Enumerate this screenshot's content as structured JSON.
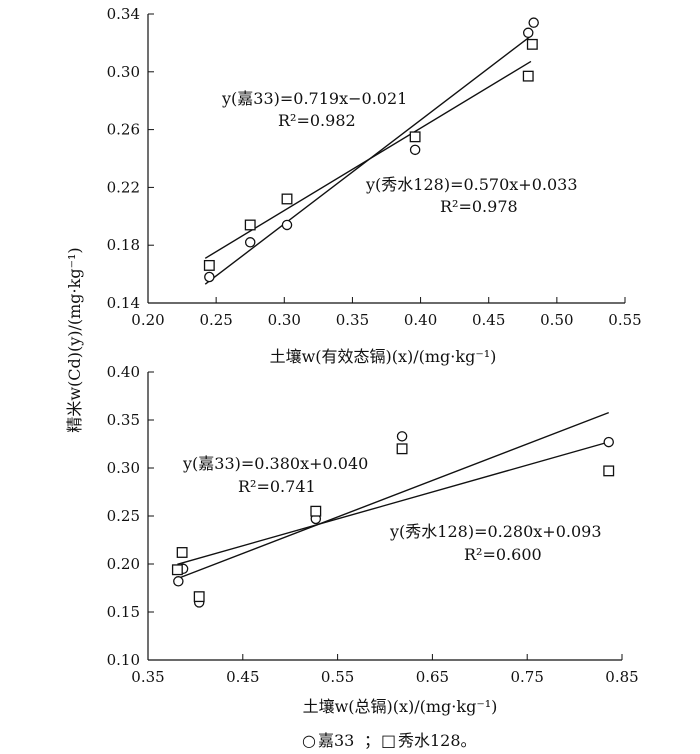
{
  "y_axis_shared_label": "精米w(Cd)(y)/(mg·kg⁻¹)",
  "legend": {
    "jia33_symbol": "○",
    "jia33_label": "嘉33",
    "separator": "；",
    "xiushui_symbol": "□",
    "xiushui_label": "秀水128。"
  },
  "chart_data": [
    {
      "type": "scatter",
      "xlabel": "土壤w(有效态镉)(x)/(mg·kg⁻¹)",
      "xlim": [
        0.2,
        0.55
      ],
      "ylim": [
        0.14,
        0.34
      ],
      "x_ticks": [
        "0.20",
        "0.25",
        "0.30",
        "0.35",
        "0.40",
        "0.45",
        "0.50",
        "0.55"
      ],
      "y_ticks": [
        "0.14",
        "0.18",
        "0.22",
        "0.26",
        "0.30",
        "0.34"
      ],
      "series": [
        {
          "name": "嘉33",
          "marker": "circle",
          "x": [
            0.245,
            0.275,
            0.302,
            0.396,
            0.479,
            0.483
          ],
          "y": [
            0.158,
            0.182,
            0.194,
            0.246,
            0.327,
            0.334
          ],
          "fit": {
            "slope": 0.719,
            "intercept": -0.021,
            "x_range": [
              0.242,
              0.481
            ]
          },
          "equation": "y(嘉33)=0.719x−0.021",
          "r2": "R²=0.982"
        },
        {
          "name": "秀水128",
          "marker": "square",
          "x": [
            0.245,
            0.275,
            0.302,
            0.396,
            0.479,
            0.482
          ],
          "y": [
            0.166,
            0.194,
            0.212,
            0.255,
            0.297,
            0.319
          ],
          "fit": {
            "slope": 0.57,
            "intercept": 0.033,
            "x_range": [
              0.242,
              0.481
            ]
          },
          "equation": "y(秀水128)=0.570x+0.033",
          "r2": "R²=0.978"
        }
      ]
    },
    {
      "type": "scatter",
      "xlabel": "土壤w(总镉)(x)/(mg·kg⁻¹)",
      "xlim": [
        0.35,
        0.85
      ],
      "ylim": [
        0.1,
        0.4
      ],
      "x_ticks": [
        "0.35",
        "0.45",
        "0.55",
        "0.65",
        "0.75",
        "0.85"
      ],
      "y_ticks": [
        "0.10",
        "0.15",
        "0.20",
        "0.25",
        "0.30",
        "0.35",
        "0.40"
      ],
      "series": [
        {
          "name": "嘉33",
          "marker": "circle",
          "x": [
            0.382,
            0.387,
            0.404,
            0.527,
            0.618,
            0.836
          ],
          "y": [
            0.182,
            0.195,
            0.16,
            0.247,
            0.333,
            0.327
          ],
          "fit": {
            "slope": 0.38,
            "intercept": 0.04,
            "x_range": [
              0.381,
              0.836
            ]
          },
          "equation": "y(嘉33)=0.380x+0.040",
          "r2": "R²=0.741"
        },
        {
          "name": "秀水128",
          "marker": "square",
          "x": [
            0.381,
            0.386,
            0.404,
            0.527,
            0.618,
            0.836
          ],
          "y": [
            0.194,
            0.212,
            0.166,
            0.255,
            0.32,
            0.297
          ],
          "fit": {
            "slope": 0.28,
            "intercept": 0.093,
            "x_range": [
              0.381,
              0.836
            ]
          },
          "equation": "y(秀水128)=0.280x+0.093",
          "r2": "R²=0.600"
        }
      ]
    }
  ]
}
